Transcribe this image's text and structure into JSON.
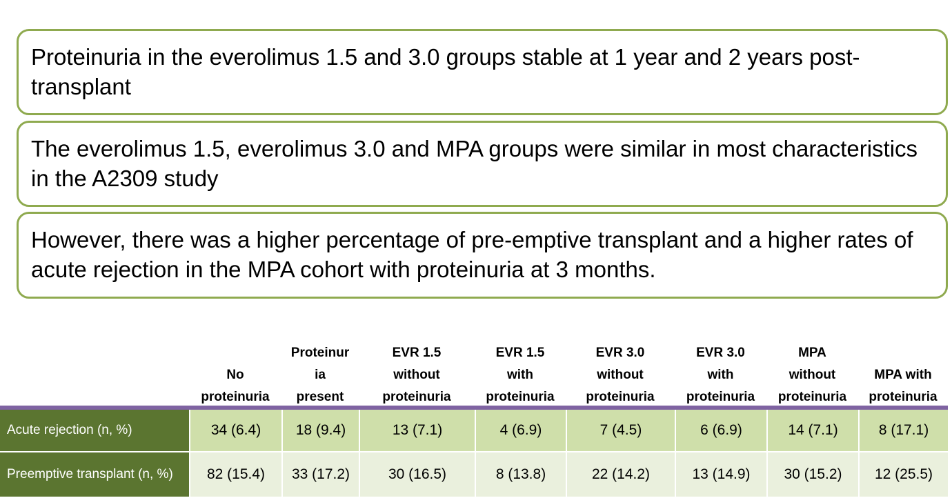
{
  "boxes": [
    {
      "text": "Proteinuria in the everolimus 1.5 and 3.0 groups stable at 1 year and 2 years post-transplant"
    },
    {
      "text": "The everolimus 1.5, everolimus 3.0 and MPA groups were similar in most characteristics in the A2309 study"
    },
    {
      "text": "However, there was a higher percentage of pre-emptive transplant and a higher rates of acute rejection in the MPA cohort with proteinuria at 3 months."
    }
  ],
  "table": {
    "columns": [
      "No\nproteinuria",
      "Proteinur\nia\npresent",
      "EVR 1.5\nwithout\nproteinuria",
      "EVR 1.5\nwith\nproteinuria",
      "EVR 3.0\nwithout\nproteinuria",
      "EVR 3.0\nwith\nproteinuria",
      "MPA\nwithout\nproteinuria",
      "MPA with\nproteinuria"
    ],
    "rows": [
      {
        "label": "Acute rejection (n, %)",
        "cells": [
          "34 (6.4)",
          "18 (9.4)",
          "13 (7.1)",
          "4 (6.9)",
          "7 (4.5)",
          "6 (6.9)",
          "14 (7.1)",
          "8 (17.1)"
        ]
      },
      {
        "label": "Preemptive transplant (n, %)",
        "cells": [
          "82 (15.4)",
          "33 (17.2)",
          "30 (16.5)",
          "8 (13.8)",
          "22 (14.2)",
          "13 (14.9)",
          "30 (15.2)",
          "12 (25.5)"
        ]
      }
    ]
  }
}
